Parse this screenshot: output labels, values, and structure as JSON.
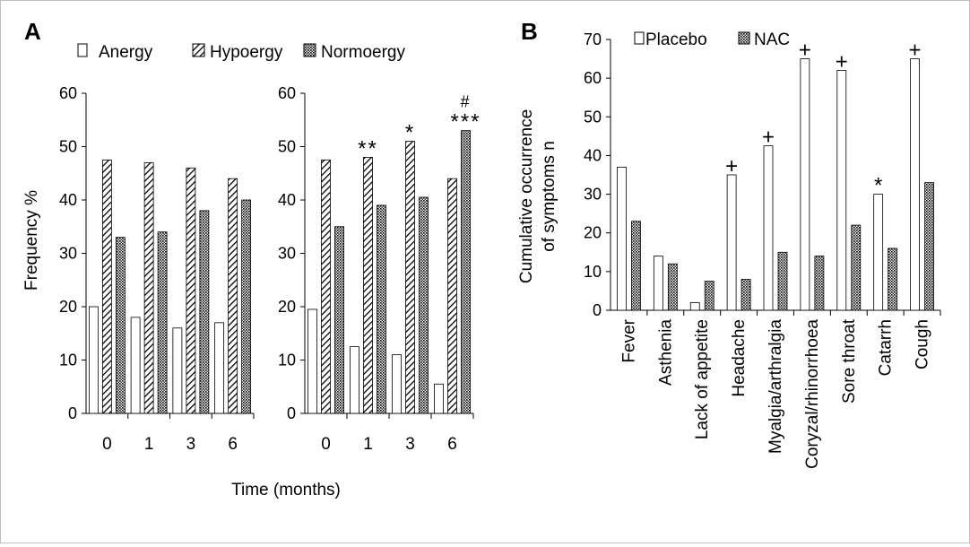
{
  "figure": {
    "panel_a_label": "A",
    "panel_b_label": "B"
  },
  "colors": {
    "axis": "#000000",
    "bar_outline": "#000000",
    "open_fill": "#ffffff",
    "background": "#ffffff"
  },
  "chart_data": [
    {
      "panel": "A",
      "subpanel": "left",
      "type": "bar",
      "categories": [
        "0",
        "1",
        "3",
        "6"
      ],
      "series": [
        {
          "name": "Anergy",
          "pattern": "open",
          "values": [
            20,
            18,
            16,
            17
          ]
        },
        {
          "name": "Hypoergy",
          "pattern": "hatch",
          "values": [
            47.5,
            47,
            46,
            44
          ]
        },
        {
          "name": "Normoergy",
          "pattern": "dots",
          "values": [
            33,
            34,
            38,
            40
          ]
        }
      ],
      "yticks": [
        "0",
        "10",
        "20",
        "30",
        "40",
        "50",
        "60"
      ],
      "ylim": [
        0,
        60
      ],
      "ylabel": "Frequency %",
      "xlabel": "Time (months)",
      "legend": "top",
      "annotations": []
    },
    {
      "panel": "A",
      "subpanel": "right",
      "type": "bar",
      "categories": [
        "0",
        "1",
        "3",
        "6"
      ],
      "series": [
        {
          "name": "Anergy",
          "pattern": "open",
          "values": [
            19.5,
            12.5,
            11,
            5.5
          ]
        },
        {
          "name": "Hypoergy",
          "pattern": "hatch",
          "values": [
            47.5,
            48,
            51,
            44
          ]
        },
        {
          "name": "Normoergy",
          "pattern": "dots",
          "values": [
            35,
            39,
            40.5,
            53
          ]
        }
      ],
      "yticks": [
        "0",
        "10",
        "20",
        "30",
        "40",
        "50",
        "60"
      ],
      "ylim": [
        0,
        60
      ],
      "annotations": [
        {
          "category": 1,
          "series": 1,
          "text": "**"
        },
        {
          "category": 2,
          "series": 1,
          "text": "*"
        },
        {
          "category": 3,
          "series": 2,
          "text": "***"
        },
        {
          "category": 3,
          "series": 2,
          "text": "#",
          "level": 2
        }
      ]
    },
    {
      "panel": "B",
      "type": "bar",
      "categories": [
        "Fever",
        "Asthenia",
        "Lack of appetite",
        "Headache",
        "Myalgia/arthralgia",
        "Coryzal/rhinorrhoea",
        "Sore throat",
        "Catarrh",
        "Cough"
      ],
      "series": [
        {
          "name": "Placebo",
          "pattern": "open",
          "values": [
            37,
            14,
            2,
            35,
            42.5,
            65,
            62,
            30,
            65
          ]
        },
        {
          "name": "NAC",
          "pattern": "dots",
          "values": [
            23,
            12,
            7.5,
            8,
            15,
            14,
            22,
            16,
            33
          ]
        }
      ],
      "yticks": [
        "0",
        "10",
        "20",
        "30",
        "40",
        "50",
        "60",
        "70"
      ],
      "ylim": [
        0,
        70
      ],
      "ylabel": [
        "Cumulative occurrence",
        "of symptoms n"
      ],
      "legend": "top",
      "annotations": [
        {
          "category": 3,
          "series": 0,
          "text": "+"
        },
        {
          "category": 4,
          "series": 0,
          "text": "+"
        },
        {
          "category": 5,
          "series": 0,
          "text": "+"
        },
        {
          "category": 6,
          "series": 0,
          "text": "+"
        },
        {
          "category": 7,
          "series": 0,
          "text": "*"
        },
        {
          "category": 8,
          "series": 0,
          "text": "+"
        }
      ]
    }
  ]
}
